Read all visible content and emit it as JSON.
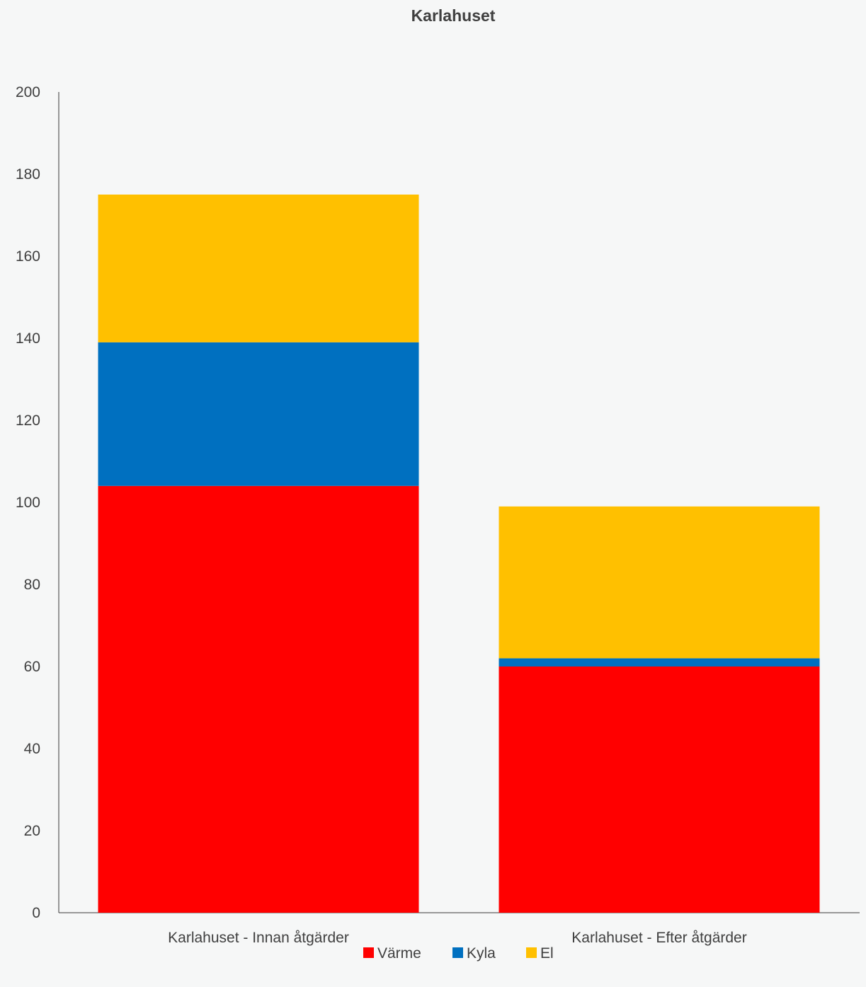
{
  "chart_data": {
    "type": "bar",
    "stacked": true,
    "title": "Karlahuset",
    "xlabel": "",
    "ylabel": "",
    "categories": [
      "Karlahuset - Innan åtgärder",
      "Karlahuset - Efter åtgärder"
    ],
    "series": [
      {
        "name": "Värme",
        "color": "#ff0000",
        "values": [
          104,
          60
        ]
      },
      {
        "name": "Kyla",
        "color": "#0070c0",
        "values": [
          35,
          2
        ]
      },
      {
        "name": "El",
        "color": "#ffc000",
        "values": [
          36,
          37
        ]
      }
    ],
    "ylim": [
      0,
      200
    ],
    "yticks": [
      0,
      20,
      40,
      60,
      80,
      100,
      120,
      140,
      160,
      180,
      200
    ],
    "grid": false,
    "legend_position": "bottom"
  }
}
